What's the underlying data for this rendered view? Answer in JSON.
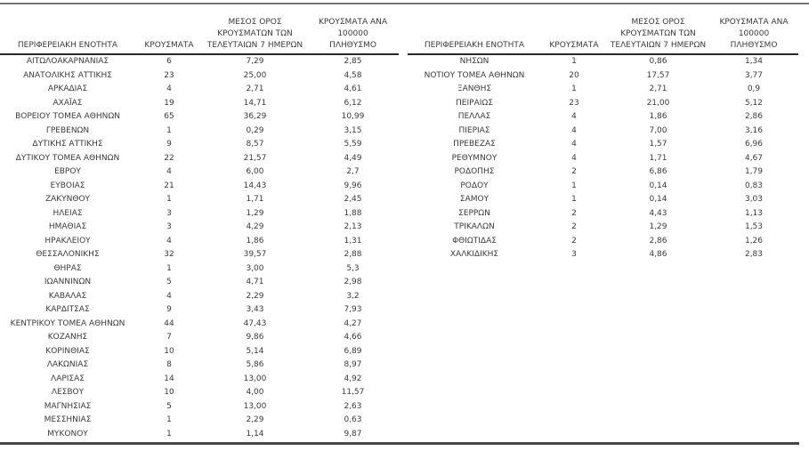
{
  "columns": {
    "region": "ΠΕΡΙΦΕΡΕΙΑΚΗ ΕΝΟΤΗΤΑ",
    "cases": "ΚΡΟΥΣΜΑΤΑ",
    "avg7": "ΜΕΣΟΣ ΟΡΟΣ\nΚΡΟΥΣΜΑΤΩΝ ΤΩΝ\nΤΕΛΕΥΤΑΙΩΝ 7 ΗΜΕΡΩΝ",
    "per100k": "ΚΡΟΥΣΜΑΤΑ ΑΝΑ 100000\nΠΛΗΘΥΣΜΟ"
  },
  "left_table": {
    "rows": [
      {
        "region": "ΑΙΤΩΛΟΑΚΑΡΝΑΝΙΑΣ",
        "cases": "6",
        "avg7": "7,29",
        "per100k": "2,85"
      },
      {
        "region": "ΑΝΑΤΟΛΙΚΗΣ ΑΤΤΙΚΗΣ",
        "cases": "23",
        "avg7": "25,00",
        "per100k": "4,58"
      },
      {
        "region": "ΑΡΚΑΔΙΑΣ",
        "cases": "4",
        "avg7": "2,71",
        "per100k": "4,61"
      },
      {
        "region": "ΑΧΑΪΑΣ",
        "cases": "19",
        "avg7": "14,71",
        "per100k": "6,12"
      },
      {
        "region": "ΒΟΡΕΙΟΥ ΤΟΜΕΑ ΑΘΗΝΩΝ",
        "cases": "65",
        "avg7": "36,29",
        "per100k": "10,99"
      },
      {
        "region": "ΓΡΕΒΕΝΩΝ",
        "cases": "1",
        "avg7": "0,29",
        "per100k": "3,15"
      },
      {
        "region": "ΔΥΤΙΚΗΣ ΑΤΤΙΚΗΣ",
        "cases": "9",
        "avg7": "8,57",
        "per100k": "5,59"
      },
      {
        "region": "ΔΥΤΙΚΟΥ ΤΟΜΕΑ ΑΘΗΝΩΝ",
        "cases": "22",
        "avg7": "21,57",
        "per100k": "4,49"
      },
      {
        "region": "ΕΒΡΟΥ",
        "cases": "4",
        "avg7": "6,00",
        "per100k": "2,7"
      },
      {
        "region": "ΕΥΒΟΙΑΣ",
        "cases": "21",
        "avg7": "14,43",
        "per100k": "9,96"
      },
      {
        "region": "ΖΑΚΥΝΘΟΥ",
        "cases": "1",
        "avg7": "1,71",
        "per100k": "2,45"
      },
      {
        "region": "ΗΛΕΙΑΣ",
        "cases": "3",
        "avg7": "1,29",
        "per100k": "1,88"
      },
      {
        "region": "ΗΜΑΘΙΑΣ",
        "cases": "3",
        "avg7": "4,29",
        "per100k": "2,13"
      },
      {
        "region": "ΗΡΑΚΛΕΙΟΥ",
        "cases": "4",
        "avg7": "1,86",
        "per100k": "1,31"
      },
      {
        "region": "ΘΕΣΣΑΛΟΝΙΚΗΣ",
        "cases": "32",
        "avg7": "39,57",
        "per100k": "2,88"
      },
      {
        "region": "ΘΗΡΑΣ",
        "cases": "1",
        "avg7": "3,00",
        "per100k": "5,3"
      },
      {
        "region": "ΙΩΑΝΝΙΝΩΝ",
        "cases": "5",
        "avg7": "4,71",
        "per100k": "2,98"
      },
      {
        "region": "ΚΑΒΑΛΑΣ",
        "cases": "4",
        "avg7": "2,29",
        "per100k": "3,2"
      },
      {
        "region": "ΚΑΡΔΙΤΣΑΣ",
        "cases": "9",
        "avg7": "3,43",
        "per100k": "7,93"
      },
      {
        "region": "ΚΕΝΤΡΙΚΟΥ ΤΟΜΕΑ ΑΘΗΝΩΝ",
        "cases": "44",
        "avg7": "47,43",
        "per100k": "4,27"
      },
      {
        "region": "ΚΟΖΑΝΗΣ",
        "cases": "7",
        "avg7": "9,86",
        "per100k": "4,66"
      },
      {
        "region": "ΚΟΡΙΝΘΙΑΣ",
        "cases": "10",
        "avg7": "5,14",
        "per100k": "6,89"
      },
      {
        "region": "ΛΑΚΩΝΙΑΣ",
        "cases": "8",
        "avg7": "5,86",
        "per100k": "8,97"
      },
      {
        "region": "ΛΑΡΙΣΑΣ",
        "cases": "14",
        "avg7": "13,00",
        "per100k": "4,92"
      },
      {
        "region": "ΛΕΣΒΟΥ",
        "cases": "10",
        "avg7": "4,00",
        "per100k": "11,57"
      },
      {
        "region": "ΜΑΓΝΗΣΙΑΣ",
        "cases": "5",
        "avg7": "13,00",
        "per100k": "2,63"
      },
      {
        "region": "ΜΕΣΣΗΝΙΑΣ",
        "cases": "1",
        "avg7": "2,29",
        "per100k": "0,63"
      },
      {
        "region": "ΜΥΚΟΝΟΥ",
        "cases": "1",
        "avg7": "1,14",
        "per100k": "9,87"
      }
    ]
  },
  "right_table": {
    "rows": [
      {
        "region": "ΝΗΣΩΝ",
        "cases": "1",
        "avg7": "0,86",
        "per100k": "1,34"
      },
      {
        "region": "ΝΟΤΙΟΥ ΤΟΜΕΑ ΑΘΗΝΩΝ",
        "cases": "20",
        "avg7": "17,57",
        "per100k": "3,77"
      },
      {
        "region": "ΞΑΝΘΗΣ",
        "cases": "1",
        "avg7": "2,71",
        "per100k": "0,9"
      },
      {
        "region": "ΠΕΙΡΑΙΩΣ",
        "cases": "23",
        "avg7": "21,00",
        "per100k": "5,12"
      },
      {
        "region": "ΠΕΛΛΑΣ",
        "cases": "4",
        "avg7": "1,86",
        "per100k": "2,86"
      },
      {
        "region": "ΠΙΕΡΙΑΣ",
        "cases": "4",
        "avg7": "7,00",
        "per100k": "3,16"
      },
      {
        "region": "ΠΡΕΒΕΖΑΣ",
        "cases": "4",
        "avg7": "1,57",
        "per100k": "6,96"
      },
      {
        "region": "ΡΕΘΥΜΝΟΥ",
        "cases": "4",
        "avg7": "1,71",
        "per100k": "4,67"
      },
      {
        "region": "ΡΟΔΟΠΗΣ",
        "cases": "2",
        "avg7": "6,86",
        "per100k": "1,79"
      },
      {
        "region": "ΡΟΔΟΥ",
        "cases": "1",
        "avg7": "0,14",
        "per100k": "0,83"
      },
      {
        "region": "ΣΑΜΟΥ",
        "cases": "1",
        "avg7": "0,14",
        "per100k": "3,03"
      },
      {
        "region": "ΣΕΡΡΩΝ",
        "cases": "2",
        "avg7": "4,43",
        "per100k": "1,13"
      },
      {
        "region": "ΤΡΙΚΑΛΩΝ",
        "cases": "2",
        "avg7": "1,29",
        "per100k": "1,53"
      },
      {
        "region": "ΦΘΙΩΤΙΔΑΣ",
        "cases": "2",
        "avg7": "2,86",
        "per100k": "1,26"
      },
      {
        "region": "ΧΑΛΚΙΔΙΚΗΣ",
        "cases": "3",
        "avg7": "4,86",
        "per100k": "2,83"
      }
    ]
  },
  "colors": {
    "text": "#3b3b3b",
    "top_rule": "#757575",
    "header_rule": "#2a2a2a",
    "bottom_rule": "#474747",
    "background": "#ffffff"
  }
}
